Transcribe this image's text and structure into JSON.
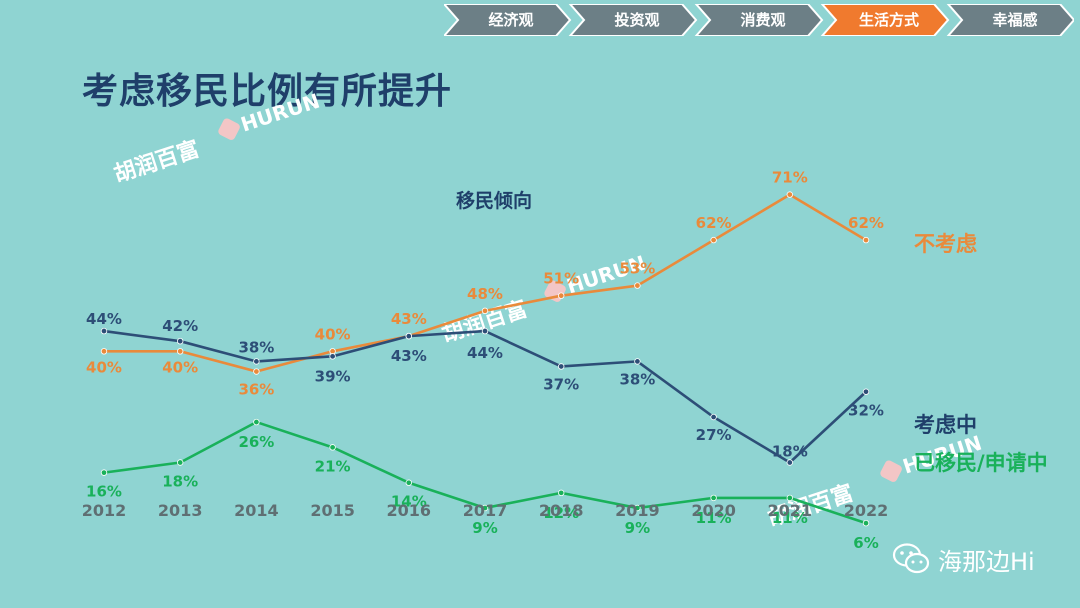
{
  "nav": {
    "items": [
      {
        "label": "经济观",
        "active": false
      },
      {
        "label": "投资观",
        "active": false
      },
      {
        "label": "消费观",
        "active": false
      },
      {
        "label": "生活方式",
        "active": true
      },
      {
        "label": "幸福感",
        "active": false
      }
    ],
    "colors": {
      "inactive": "#6c7f86",
      "active": "#f07a2e"
    }
  },
  "page_title": "考虑移民比例有所提升",
  "watermarks": {
    "cn": "胡润百富",
    "en": "HURUN"
  },
  "brand": {
    "name": "海那边Hi",
    "icon": "wechat-icon"
  },
  "chart_data": {
    "type": "line",
    "title": "移民倾向",
    "x": [
      "2012",
      "2013",
      "2014",
      "2015",
      "2016",
      "2017",
      "2018",
      "2019",
      "2020",
      "2021",
      "2022"
    ],
    "series": [
      {
        "name": "不考虑",
        "color": "#e98a3b",
        "values": [
          40,
          40,
          36,
          40,
          43,
          48,
          51,
          53,
          62,
          71,
          62
        ],
        "labels": [
          "40%",
          "40%",
          "36%",
          "40%",
          "43%",
          "48%",
          "51%",
          "53%",
          "62%",
          "71%",
          "62%"
        ]
      },
      {
        "name": "考虑中",
        "color": "#2d4e77",
        "values": [
          44,
          42,
          38,
          39,
          43,
          44,
          37,
          38,
          27,
          18,
          32
        ],
        "labels": [
          "44%",
          "42%",
          "38%",
          "39%",
          "43%",
          "44%",
          "37%",
          "38%",
          "27%",
          "18%",
          "32%"
        ]
      },
      {
        "name": "已移民/申请中",
        "color": "#19b15a",
        "values": [
          16,
          18,
          26,
          21,
          14,
          9,
          12,
          9,
          11,
          11,
          6
        ],
        "labels": [
          "16%",
          "18%",
          "26%",
          "21%",
          "14%",
          "9%",
          "12%",
          "9%",
          "11%",
          "11%",
          "6%"
        ]
      }
    ],
    "unit": "%",
    "grid": false,
    "legend": "right"
  }
}
